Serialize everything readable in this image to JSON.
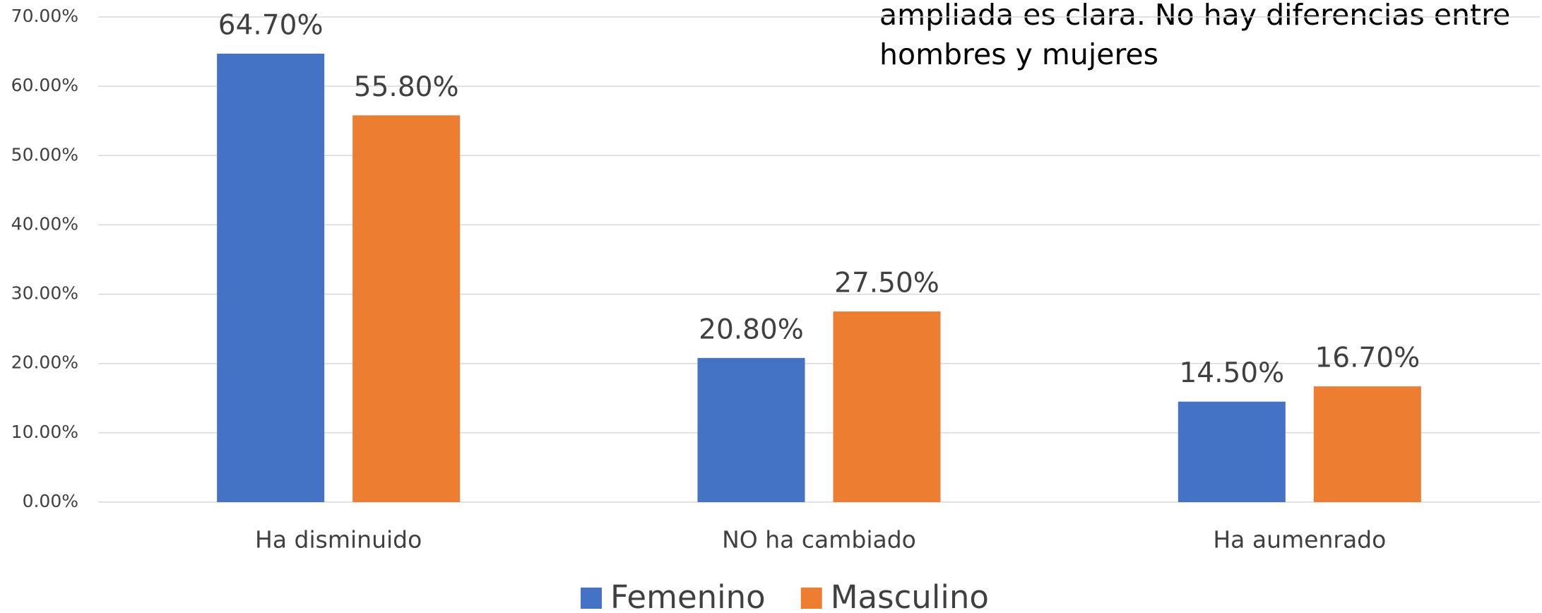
{
  "chart_data": {
    "type": "bar",
    "annotation": [
      "ampliada es clara. No hay diferencias entre",
      "hombres y mujeres"
    ],
    "categories": [
      "Ha disminuido",
      "NO ha cambiado",
      "Ha aumenrado"
    ],
    "series": [
      {
        "name": "Femenino",
        "color": "#4472c4",
        "values": [
          64.7,
          20.8,
          14.5
        ],
        "value_labels": [
          "64.70%",
          "20.80%",
          "14.50%"
        ]
      },
      {
        "name": "Masculino",
        "color": "#ed7d31",
        "values": [
          55.8,
          27.5,
          16.7
        ],
        "value_labels": [
          "55.80%",
          "27.50%",
          "16.70%"
        ]
      }
    ],
    "ylim": [
      0,
      70
    ],
    "yticks": [
      {
        "value": 0,
        "label": "0.00%"
      },
      {
        "value": 10,
        "label": "10.00%"
      },
      {
        "value": 20,
        "label": "20.00%"
      },
      {
        "value": 30,
        "label": "30.00%"
      },
      {
        "value": 40,
        "label": "40.00%"
      },
      {
        "value": 50,
        "label": "50.00%"
      },
      {
        "value": 60,
        "label": "60.00%"
      },
      {
        "value": 70,
        "label": "70.00%"
      }
    ],
    "grid": true,
    "legend": "bottom"
  }
}
